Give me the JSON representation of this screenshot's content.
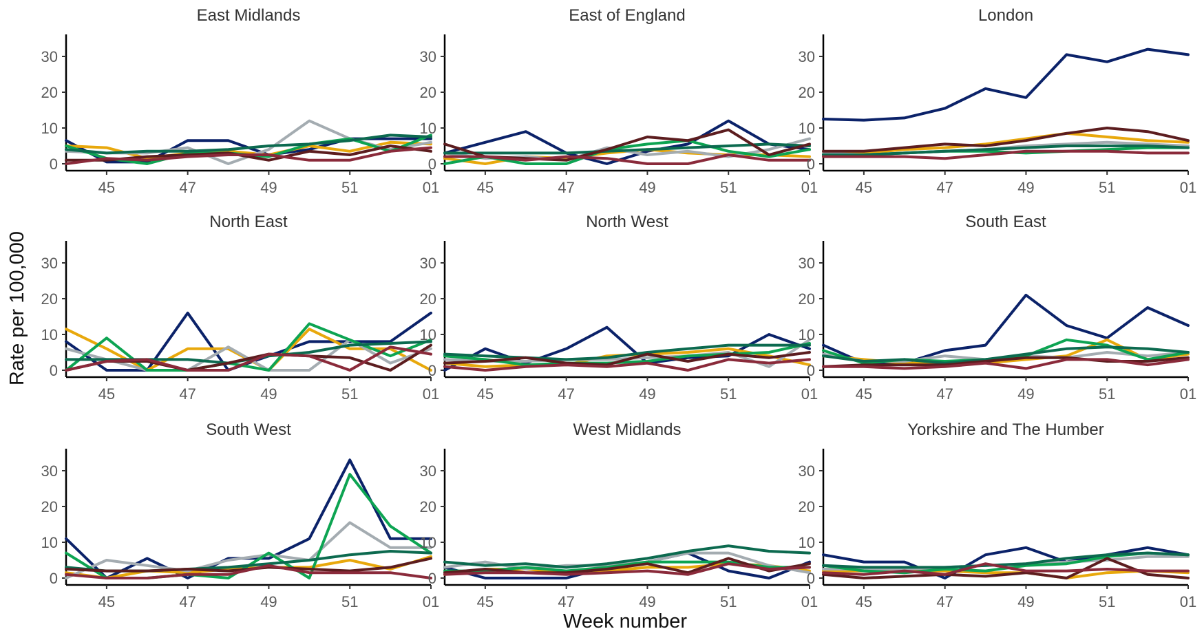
{
  "chart_data": {
    "type": "line",
    "xlabel": "Week number",
    "ylabel": "Rate per 100,000",
    "x": [
      "44",
      "45",
      "46",
      "47",
      "48",
      "49",
      "50",
      "51",
      "52",
      "01"
    ],
    "x_tick_labels": [
      "45",
      "47",
      "49",
      "51",
      "01"
    ],
    "ylim": [
      0,
      35
    ],
    "y_ticks": [
      0,
      10,
      20,
      30
    ],
    "grid": false,
    "legend": "none",
    "series_colors": [
      "#0b2269",
      "#e8a80c",
      "#a4acb1",
      "#0da452",
      "#0c6a4f",
      "#5c1d1f",
      "#8a2a3a"
    ],
    "panels": [
      {
        "title": "East Midlands",
        "series": [
          {
            "color": "#0b2269",
            "values": [
              6.5,
              0.5,
              0.5,
              6.5,
              6.5,
              2.5,
              4.0,
              7.0,
              7.0,
              7.0
            ]
          },
          {
            "color": "#e8a80c",
            "values": [
              5.0,
              4.5,
              1.5,
              3.0,
              3.5,
              2.5,
              5.0,
              3.5,
              6.0,
              5.5
            ]
          },
          {
            "color": "#a4acb1",
            "values": [
              3.5,
              3.0,
              3.0,
              4.5,
              0.0,
              4.0,
              12.0,
              7.0,
              4.0,
              6.0
            ]
          },
          {
            "color": "#0da452",
            "values": [
              5.0,
              1.5,
              0.0,
              3.0,
              3.0,
              2.0,
              5.5,
              7.0,
              3.5,
              8.0
            ]
          },
          {
            "color": "#0c6a4f",
            "values": [
              4.0,
              3.0,
              3.5,
              3.5,
              4.0,
              5.0,
              5.5,
              6.5,
              8.0,
              7.5
            ]
          },
          {
            "color": "#5c1d1f",
            "values": [
              1.0,
              1.0,
              2.0,
              2.5,
              3.0,
              1.0,
              3.5,
              2.5,
              5.0,
              3.5
            ]
          },
          {
            "color": "#8a2a3a",
            "values": [
              0.0,
              1.5,
              1.0,
              2.0,
              2.5,
              2.5,
              1.0,
              1.0,
              3.5,
              4.5
            ]
          }
        ]
      },
      {
        "title": "East of England",
        "series": [
          {
            "color": "#0b2269",
            "values": [
              3.0,
              6.0,
              9.0,
              3.0,
              0.0,
              3.5,
              5.5,
              12.0,
              5.5,
              4.0
            ]
          },
          {
            "color": "#e8a80c",
            "values": [
              1.5,
              0.0,
              2.0,
              1.5,
              3.0,
              4.0,
              3.0,
              2.5,
              2.5,
              2.0
            ]
          },
          {
            "color": "#a4acb1",
            "values": [
              3.0,
              1.5,
              2.0,
              1.0,
              4.5,
              2.5,
              3.5,
              2.0,
              4.0,
              7.0
            ]
          },
          {
            "color": "#0da452",
            "values": [
              0.0,
              2.0,
              0.0,
              0.0,
              4.0,
              5.5,
              6.5,
              3.5,
              2.0,
              4.0
            ]
          },
          {
            "color": "#0c6a4f",
            "values": [
              3.0,
              3.0,
              3.0,
              3.0,
              3.5,
              4.0,
              4.5,
              5.0,
              5.5,
              5.0
            ]
          },
          {
            "color": "#5c1d1f",
            "values": [
              5.5,
              2.0,
              1.5,
              1.0,
              4.0,
              7.5,
              6.5,
              9.5,
              2.5,
              5.5
            ]
          },
          {
            "color": "#8a2a3a",
            "values": [
              2.0,
              2.0,
              1.0,
              2.0,
              1.5,
              0.0,
              0.0,
              2.5,
              1.0,
              1.0
            ]
          }
        ]
      },
      {
        "title": "London",
        "series": [
          {
            "color": "#0b2269",
            "values": [
              12.5,
              12.2,
              12.8,
              15.5,
              21.0,
              18.5,
              30.5,
              28.5,
              32.0,
              30.5
            ]
          },
          {
            "color": "#e8a80c",
            "values": [
              3.0,
              3.0,
              4.0,
              4.5,
              5.5,
              7.0,
              8.5,
              7.5,
              6.5,
              6.0
            ]
          },
          {
            "color": "#a4acb1",
            "values": [
              3.0,
              2.5,
              3.0,
              3.5,
              4.0,
              5.0,
              5.5,
              6.0,
              5.5,
              5.0
            ]
          },
          {
            "color": "#0da452",
            "values": [
              2.5,
              2.5,
              3.0,
              3.5,
              3.5,
              3.0,
              3.5,
              4.0,
              4.5,
              4.5
            ]
          },
          {
            "color": "#0c6a4f",
            "values": [
              2.5,
              2.5,
              3.0,
              3.5,
              4.0,
              4.5,
              5.0,
              5.0,
              5.0,
              4.5
            ]
          },
          {
            "color": "#5c1d1f",
            "values": [
              3.5,
              3.5,
              4.5,
              5.5,
              5.0,
              6.5,
              8.5,
              10.0,
              9.0,
              6.5
            ]
          },
          {
            "color": "#8a2a3a",
            "values": [
              2.0,
              2.0,
              2.0,
              1.5,
              2.5,
              3.5,
              3.5,
              3.5,
              3.0,
              3.0
            ]
          }
        ]
      },
      {
        "title": "North East",
        "series": [
          {
            "color": "#0b2269",
            "values": [
              8.0,
              0.0,
              0.0,
              16.0,
              0.0,
              4.0,
              8.0,
              8.0,
              8.0,
              16.0
            ]
          },
          {
            "color": "#e8a80c",
            "values": [
              11.5,
              6.0,
              0.0,
              6.0,
              6.0,
              0.0,
              11.5,
              6.0,
              6.0,
              0.0
            ]
          },
          {
            "color": "#a4acb1",
            "values": [
              6.0,
              3.0,
              0.0,
              0.0,
              6.5,
              0.0,
              0.0,
              8.5,
              2.0,
              6.0
            ]
          },
          {
            "color": "#0da452",
            "values": [
              0.0,
              9.0,
              0.0,
              0.0,
              2.0,
              0.0,
              13.0,
              8.5,
              4.0,
              8.5
            ]
          },
          {
            "color": "#0c6a4f",
            "values": [
              3.0,
              3.0,
              3.0,
              3.0,
              2.0,
              4.0,
              5.0,
              7.0,
              7.5,
              8.0
            ]
          },
          {
            "color": "#5c1d1f",
            "values": [
              0.0,
              2.5,
              2.5,
              0.0,
              2.0,
              4.5,
              4.0,
              3.5,
              0.0,
              7.0
            ]
          },
          {
            "color": "#8a2a3a",
            "values": [
              0.0,
              2.5,
              3.0,
              0.0,
              0.0,
              4.5,
              4.0,
              0.0,
              6.5,
              4.5
            ]
          }
        ]
      },
      {
        "title": "North West",
        "series": [
          {
            "color": "#0b2269",
            "values": [
              0.0,
              6.0,
              2.0,
              6.0,
              12.0,
              2.0,
              3.5,
              4.0,
              10.0,
              6.0
            ]
          },
          {
            "color": "#e8a80c",
            "values": [
              2.0,
              1.0,
              1.5,
              1.5,
              4.0,
              4.5,
              5.0,
              6.0,
              4.0,
              1.5
            ]
          },
          {
            "color": "#a4acb1",
            "values": [
              3.0,
              2.5,
              2.5,
              3.0,
              3.0,
              3.5,
              4.0,
              5.0,
              1.0,
              8.5
            ]
          },
          {
            "color": "#0da452",
            "values": [
              4.0,
              3.0,
              1.5,
              2.0,
              2.0,
              2.5,
              4.0,
              4.5,
              5.0,
              7.5
            ]
          },
          {
            "color": "#0c6a4f",
            "values": [
              4.5,
              4.0,
              3.5,
              3.0,
              3.5,
              5.0,
              6.0,
              7.0,
              7.0,
              7.0
            ]
          },
          {
            "color": "#5c1d1f",
            "values": [
              2.0,
              2.5,
              3.5,
              2.0,
              1.5,
              4.5,
              2.5,
              4.5,
              3.5,
              5.0
            ]
          },
          {
            "color": "#8a2a3a",
            "values": [
              1.0,
              0.0,
              1.0,
              1.5,
              1.0,
              2.0,
              0.0,
              3.0,
              2.0,
              3.0
            ]
          }
        ]
      },
      {
        "title": "South East",
        "series": [
          {
            "color": "#0b2269",
            "values": [
              7.0,
              2.0,
              2.0,
              5.5,
              7.0,
              21.0,
              12.5,
              9.0,
              17.5,
              12.5
            ]
          },
          {
            "color": "#e8a80c",
            "values": [
              4.0,
              3.0,
              2.0,
              2.0,
              2.0,
              3.0,
              4.0,
              8.5,
              3.0,
              4.5
            ]
          },
          {
            "color": "#a4acb1",
            "values": [
              4.5,
              2.5,
              2.5,
              4.0,
              3.0,
              4.0,
              3.5,
              5.0,
              4.0,
              5.0
            ]
          },
          {
            "color": "#0da452",
            "values": [
              5.5,
              2.0,
              3.0,
              2.5,
              3.0,
              4.0,
              8.5,
              7.0,
              3.0,
              5.0
            ]
          },
          {
            "color": "#0c6a4f",
            "values": [
              4.0,
              2.5,
              3.0,
              2.0,
              3.0,
              4.5,
              6.0,
              6.5,
              6.0,
              5.0
            ]
          },
          {
            "color": "#5c1d1f",
            "values": [
              1.0,
              1.5,
              1.5,
              1.5,
              2.5,
              3.5,
              3.5,
              2.5,
              2.5,
              3.5
            ]
          },
          {
            "color": "#8a2a3a",
            "values": [
              1.0,
              1.0,
              0.5,
              1.0,
              2.0,
              0.5,
              3.0,
              3.0,
              1.5,
              3.0
            ]
          }
        ]
      },
      {
        "title": "South West",
        "series": [
          {
            "color": "#0b2269",
            "values": [
              11.0,
              0.0,
              5.5,
              0.0,
              5.5,
              5.5,
              11.0,
              33.0,
              11.0,
              11.0
            ]
          },
          {
            "color": "#e8a80c",
            "values": [
              1.5,
              0.0,
              2.0,
              1.5,
              2.5,
              3.0,
              3.0,
              5.0,
              2.5,
              6.0
            ]
          },
          {
            "color": "#a4acb1",
            "values": [
              0.0,
              5.0,
              3.5,
              2.0,
              5.0,
              6.5,
              5.0,
              15.5,
              8.5,
              8.5
            ]
          },
          {
            "color": "#0da452",
            "values": [
              7.0,
              0.0,
              0.0,
              1.0,
              0.0,
              7.0,
              0.0,
              29.0,
              14.5,
              7.0
            ]
          },
          {
            "color": "#0c6a4f",
            "values": [
              3.0,
              2.0,
              2.0,
              2.5,
              3.0,
              4.0,
              5.0,
              6.5,
              7.5,
              7.0
            ]
          },
          {
            "color": "#5c1d1f",
            "values": [
              2.5,
              2.0,
              2.0,
              2.5,
              2.0,
              3.0,
              2.5,
              2.0,
              3.0,
              5.5
            ]
          },
          {
            "color": "#8a2a3a",
            "values": [
              1.0,
              0.0,
              0.0,
              1.0,
              1.0,
              3.5,
              1.5,
              1.5,
              1.5,
              0.0
            ]
          }
        ]
      },
      {
        "title": "West Midlands",
        "series": [
          {
            "color": "#0b2269",
            "values": [
              3.0,
              0.0,
              0.0,
              0.0,
              3.0,
              4.5,
              7.0,
              2.0,
              0.0,
              4.5
            ]
          },
          {
            "color": "#e8a80c",
            "values": [
              1.0,
              2.5,
              2.5,
              1.5,
              2.0,
              3.0,
              3.0,
              4.0,
              3.5,
              2.0
            ]
          },
          {
            "color": "#a4acb1",
            "values": [
              3.0,
              4.5,
              2.5,
              3.5,
              3.5,
              4.5,
              7.0,
              7.0,
              3.5,
              1.5
            ]
          },
          {
            "color": "#0da452",
            "values": [
              2.0,
              2.0,
              3.0,
              2.0,
              3.0,
              4.5,
              4.5,
              4.5,
              3.0,
              3.0
            ]
          },
          {
            "color": "#0c6a4f",
            "values": [
              4.5,
              3.5,
              4.0,
              3.0,
              4.0,
              5.5,
              7.5,
              9.0,
              7.5,
              7.0
            ]
          },
          {
            "color": "#5c1d1f",
            "values": [
              1.5,
              2.5,
              1.5,
              1.5,
              2.5,
              4.0,
              1.5,
              5.5,
              2.0,
              4.0
            ]
          },
          {
            "color": "#8a2a3a",
            "values": [
              1.0,
              1.5,
              1.5,
              1.0,
              1.5,
              2.0,
              1.0,
              4.0,
              2.5,
              3.0
            ]
          }
        ]
      },
      {
        "title": "Yorkshire and The Humber",
        "series": [
          {
            "color": "#0b2269",
            "values": [
              6.5,
              4.5,
              4.5,
              0.0,
              6.5,
              8.5,
              4.5,
              6.5,
              8.5,
              6.5
            ]
          },
          {
            "color": "#e8a80c",
            "values": [
              2.0,
              2.0,
              2.0,
              2.0,
              1.5,
              1.5,
              0.0,
              1.5,
              2.0,
              1.5
            ]
          },
          {
            "color": "#a4acb1",
            "values": [
              2.5,
              2.5,
              2.5,
              3.0,
              3.5,
              4.0,
              4.5,
              5.0,
              6.0,
              6.0
            ]
          },
          {
            "color": "#0da452",
            "values": [
              3.5,
              2.0,
              1.5,
              2.5,
              2.0,
              3.5,
              4.0,
              6.0,
              7.0,
              6.5
            ]
          },
          {
            "color": "#0c6a4f",
            "values": [
              3.5,
              3.0,
              3.0,
              3.0,
              3.5,
              4.0,
              5.5,
              6.5,
              7.0,
              6.5
            ]
          },
          {
            "color": "#5c1d1f",
            "values": [
              1.0,
              0.0,
              0.5,
              1.0,
              0.5,
              1.5,
              0.0,
              5.5,
              1.0,
              0.0
            ]
          },
          {
            "color": "#8a2a3a",
            "values": [
              1.5,
              1.0,
              2.0,
              1.0,
              4.0,
              2.0,
              2.0,
              2.5,
              2.0,
              2.0
            ]
          }
        ]
      }
    ]
  }
}
